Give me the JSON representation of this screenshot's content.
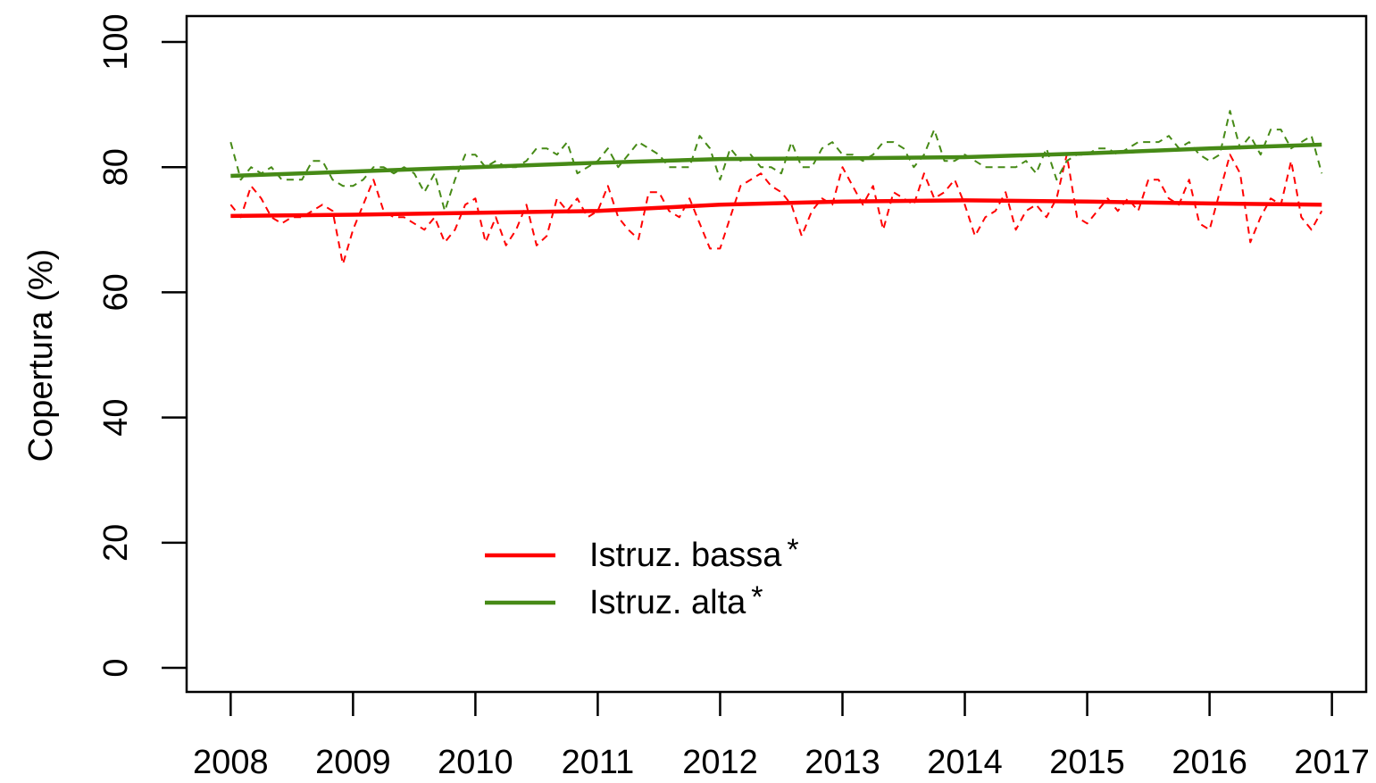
{
  "chart_data": {
    "type": "line",
    "ylabel": "Copertura (%)",
    "xlim": [
      2007.64,
      2017.28
    ],
    "ylim": [
      -3.85,
      104.14
    ],
    "xticks": [
      2008,
      2009,
      2010,
      2011,
      2012,
      2013,
      2014,
      2015,
      2016,
      2017
    ],
    "yticks": [
      0,
      20,
      40,
      60,
      80,
      100
    ],
    "x": [
      2008,
      2008.083,
      2008.167,
      2008.25,
      2008.333,
      2008.417,
      2008.5,
      2008.583,
      2008.667,
      2008.75,
      2008.833,
      2008.917,
      2009,
      2009.083,
      2009.167,
      2009.25,
      2009.333,
      2009.417,
      2009.5,
      2009.583,
      2009.667,
      2009.75,
      2009.833,
      2009.917,
      2010,
      2010.083,
      2010.167,
      2010.25,
      2010.333,
      2010.417,
      2010.5,
      2010.583,
      2010.667,
      2010.75,
      2010.833,
      2010.917,
      2011,
      2011.083,
      2011.167,
      2011.25,
      2011.333,
      2011.417,
      2011.5,
      2011.583,
      2011.667,
      2011.75,
      2011.833,
      2011.917,
      2012,
      2012.083,
      2012.167,
      2012.25,
      2012.333,
      2012.417,
      2012.5,
      2012.583,
      2012.667,
      2012.75,
      2012.833,
      2012.917,
      2013,
      2013.083,
      2013.167,
      2013.25,
      2013.333,
      2013.417,
      2013.5,
      2013.583,
      2013.667,
      2013.75,
      2013.833,
      2013.917,
      2014,
      2014.083,
      2014.167,
      2014.25,
      2014.333,
      2014.417,
      2014.5,
      2014.583,
      2014.667,
      2014.75,
      2014.833,
      2014.917,
      2015,
      2015.083,
      2015.167,
      2015.25,
      2015.333,
      2015.417,
      2015.5,
      2015.583,
      2015.667,
      2015.75,
      2015.833,
      2015.917,
      2016,
      2016.083,
      2016.167,
      2016.25,
      2016.333,
      2016.417,
      2016.5,
      2016.583,
      2016.667,
      2016.75,
      2016.833,
      2016.917
    ],
    "series": [
      {
        "color": "#ff0000",
        "style": "dashed",
        "values": [
          74,
          72,
          77,
          75,
          72,
          71,
          72,
          72,
          73,
          74,
          73,
          64.5,
          70,
          74,
          78,
          73,
          72,
          72,
          71,
          70,
          72,
          68,
          70,
          74,
          75,
          68,
          72,
          67.5,
          70,
          74,
          67.5,
          69,
          75,
          73,
          75,
          72,
          73,
          77,
          72,
          70,
          68.5,
          76,
          76,
          73,
          72,
          75,
          71,
          67,
          67,
          72,
          77,
          78,
          79,
          77,
          76,
          74,
          69,
          73,
          75,
          74,
          80,
          77,
          74,
          77,
          70,
          76,
          75,
          74,
          79,
          75,
          76,
          78,
          74,
          69,
          72,
          73,
          76,
          70,
          73,
          74,
          72,
          75,
          82,
          72,
          71,
          73,
          75,
          73,
          75,
          73,
          78,
          78,
          75,
          74,
          78,
          71,
          70,
          76,
          82,
          79,
          68,
          72,
          75,
          74,
          81,
          72,
          70,
          73
        ]
      },
      {
        "color": "#468a16",
        "style": "dashed",
        "values": [
          84,
          78,
          80,
          79,
          80,
          78,
          78,
          78,
          81,
          81,
          78,
          77,
          77,
          78,
          80,
          80,
          79,
          80,
          79,
          76,
          79,
          73,
          78,
          82,
          82,
          80,
          81,
          80,
          80,
          81,
          83,
          83,
          82,
          84,
          79,
          80,
          81,
          83,
          80,
          82,
          84,
          83,
          82,
          80,
          80,
          80,
          85,
          83,
          78,
          83,
          81,
          82,
          80,
          80,
          79,
          84,
          80,
          80,
          83,
          84,
          82,
          82,
          81,
          82,
          84,
          84,
          83,
          80,
          82,
          86,
          81,
          81,
          82,
          81,
          80,
          80,
          80,
          80,
          81,
          79,
          83,
          78,
          81,
          82,
          82,
          83,
          83,
          82,
          83,
          84,
          84,
          84,
          85,
          83,
          84,
          82,
          81,
          82,
          89,
          83,
          85,
          82,
          86,
          86,
          83,
          84,
          85,
          79
        ]
      },
      {
        "name": "Istruz. bassa",
        "note": "*",
        "color": "#ff0000",
        "style": "solid",
        "x": [
          2008,
          2009,
          2010,
          2011,
          2012,
          2013,
          2014,
          2015,
          2016,
          2016.917
        ],
        "values": [
          72.2,
          72.4,
          72.7,
          73,
          74,
          74.5,
          74.7,
          74.5,
          74.2,
          74
        ]
      },
      {
        "name": "Istruz. alta",
        "note": "*",
        "color": "#468a16",
        "style": "solid",
        "x": [
          2008,
          2009,
          2010,
          2011,
          2012,
          2013,
          2014,
          2015,
          2016,
          2016.917
        ],
        "values": [
          78.6,
          79.3,
          80,
          80.7,
          81.3,
          81.4,
          81.6,
          82.2,
          83,
          83.6
        ]
      }
    ]
  }
}
